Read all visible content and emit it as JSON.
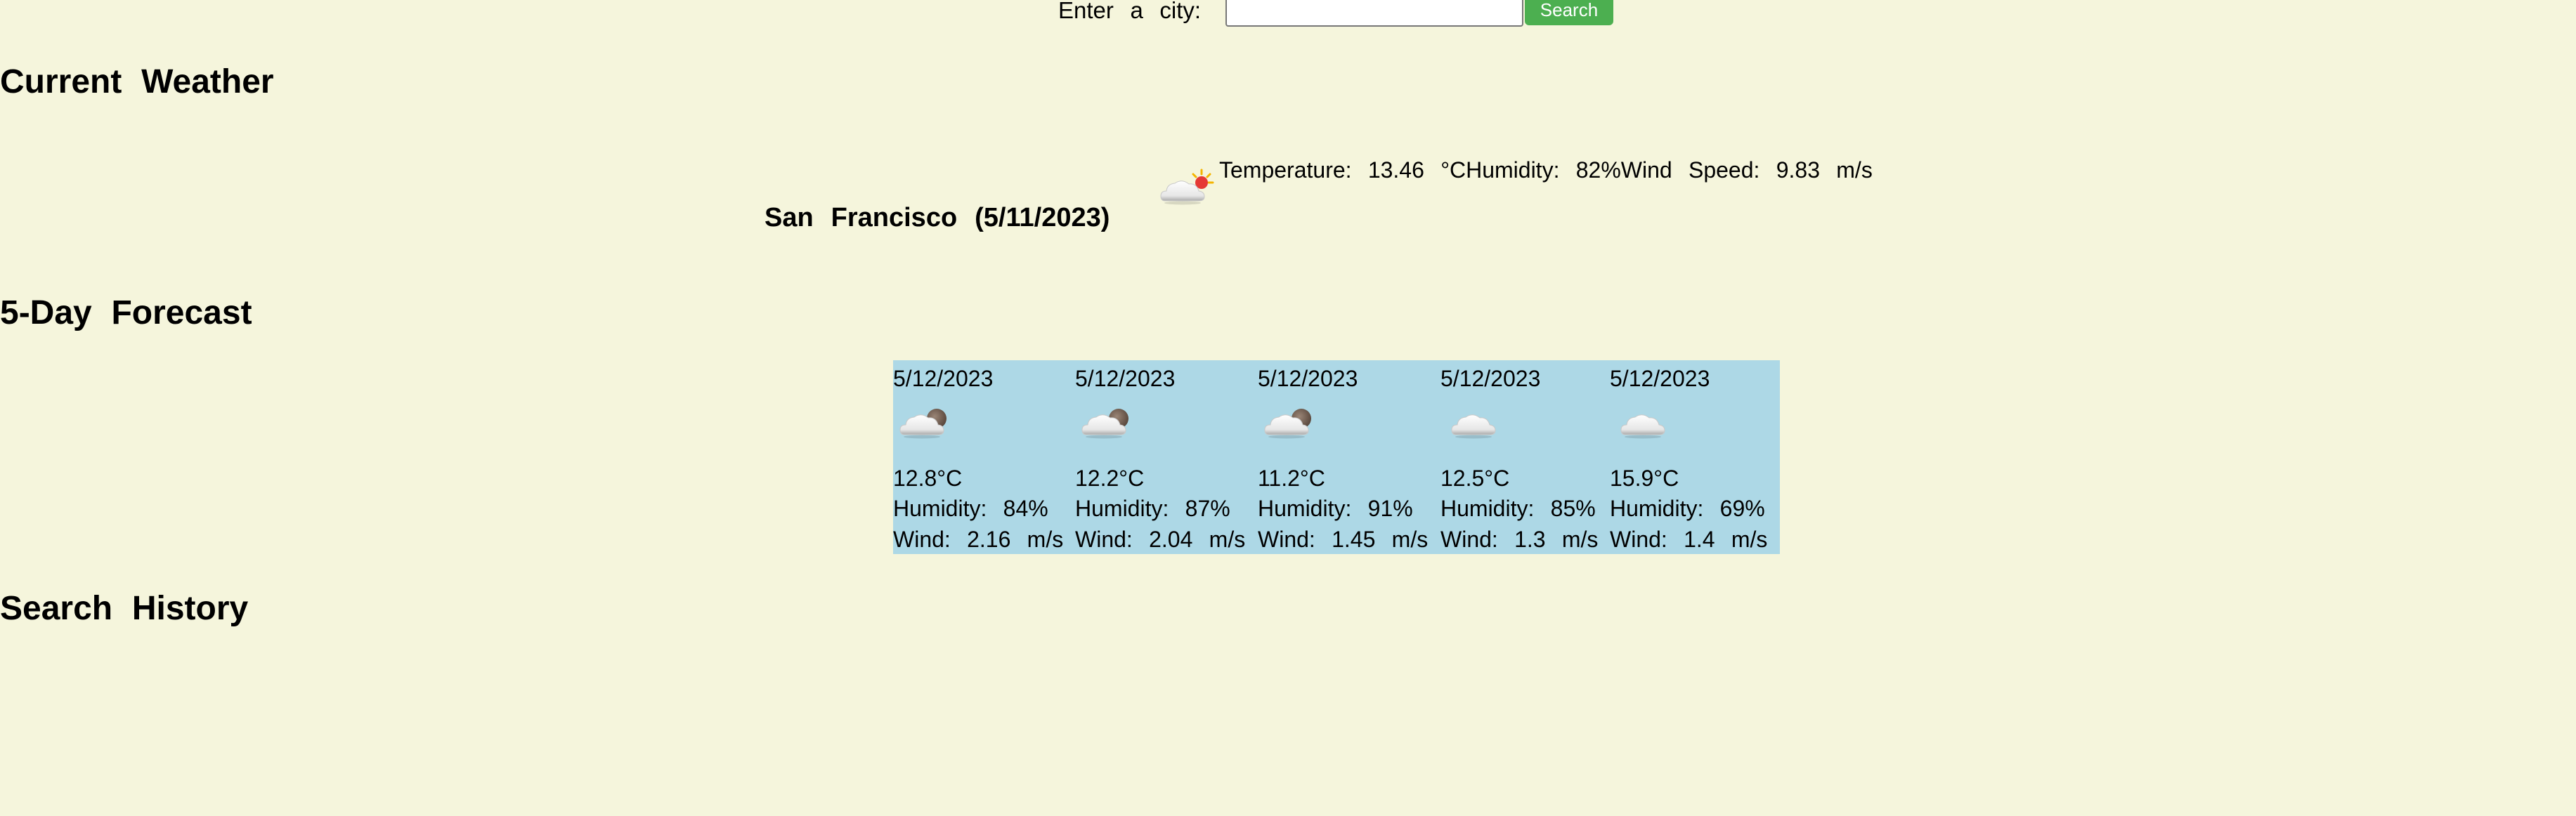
{
  "search": {
    "label": "Enter a city:",
    "input_value": "",
    "button_label": "Search",
    "button_color": "#4caf50"
  },
  "current": {
    "heading": "Current Weather",
    "city_date": "San Francisco (5/11/2023)",
    "icon": "partly-cloudy-sun-icon",
    "details": "Temperature: 13.46 °CHumidity: 82%Wind Speed: 9.83 m/s"
  },
  "forecast": {
    "heading": "5-Day Forecast",
    "panel_color": "#add8e6",
    "days": [
      {
        "date": "5/12/2023",
        "icon": "partly-cloudy-night-icon",
        "temp": "12.8°C",
        "humidity": "Humidity: 84%",
        "wind": "Wind: 2.16 m/s"
      },
      {
        "date": "5/12/2023",
        "icon": "partly-cloudy-night-icon",
        "temp": "12.2°C",
        "humidity": "Humidity: 87%",
        "wind": "Wind: 2.04 m/s"
      },
      {
        "date": "5/12/2023",
        "icon": "partly-cloudy-night-icon",
        "temp": "11.2°C",
        "humidity": "Humidity: 91%",
        "wind": "Wind: 1.45 m/s"
      },
      {
        "date": "5/12/2023",
        "icon": "cloud-icon",
        "temp": "12.5°C",
        "humidity": "Humidity: 85%",
        "wind": "Wind: 1.3 m/s"
      },
      {
        "date": "5/12/2023",
        "icon": "cloud-icon",
        "temp": "15.9°C",
        "humidity": "Humidity: 69%",
        "wind": "Wind: 1.4 m/s"
      }
    ]
  },
  "history": {
    "heading": "Search History"
  }
}
